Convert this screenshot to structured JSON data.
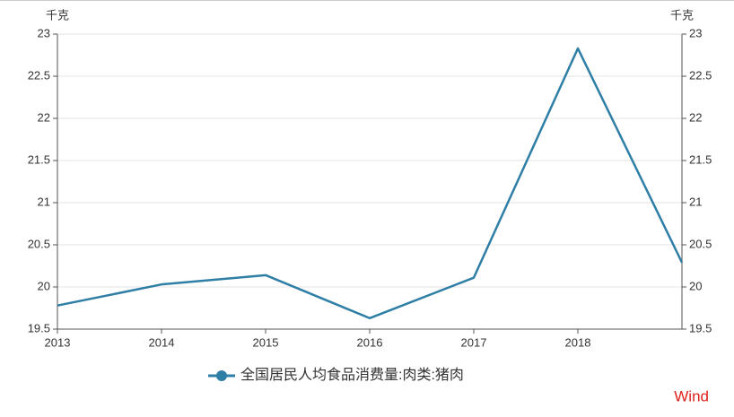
{
  "chart_data": {
    "type": "line",
    "x": [
      2013,
      2014,
      2015,
      2016,
      2017,
      2018,
      2019
    ],
    "xlim": [
      2013,
      2019
    ],
    "xticks": [
      2013,
      2014,
      2015,
      2016,
      2017,
      2018
    ],
    "ylim": [
      19.5,
      23
    ],
    "yticks": [
      19.5,
      20,
      20.5,
      21,
      21.5,
      22,
      22.5,
      23
    ],
    "y2lim": [
      19.5,
      23
    ],
    "y2ticks": [
      19.5,
      20,
      20.5,
      21,
      21.5,
      22,
      22.5,
      23
    ],
    "y_label": "千克",
    "y2_label": "千克",
    "grid": true,
    "series": [
      {
        "name": "全国居民人均食品消费量:肉类:猪肉",
        "color": "#2e7ea6",
        "values": [
          19.78,
          20.03,
          20.14,
          19.63,
          20.11,
          22.83,
          20.29
        ]
      }
    ],
    "watermark": "Wind"
  }
}
